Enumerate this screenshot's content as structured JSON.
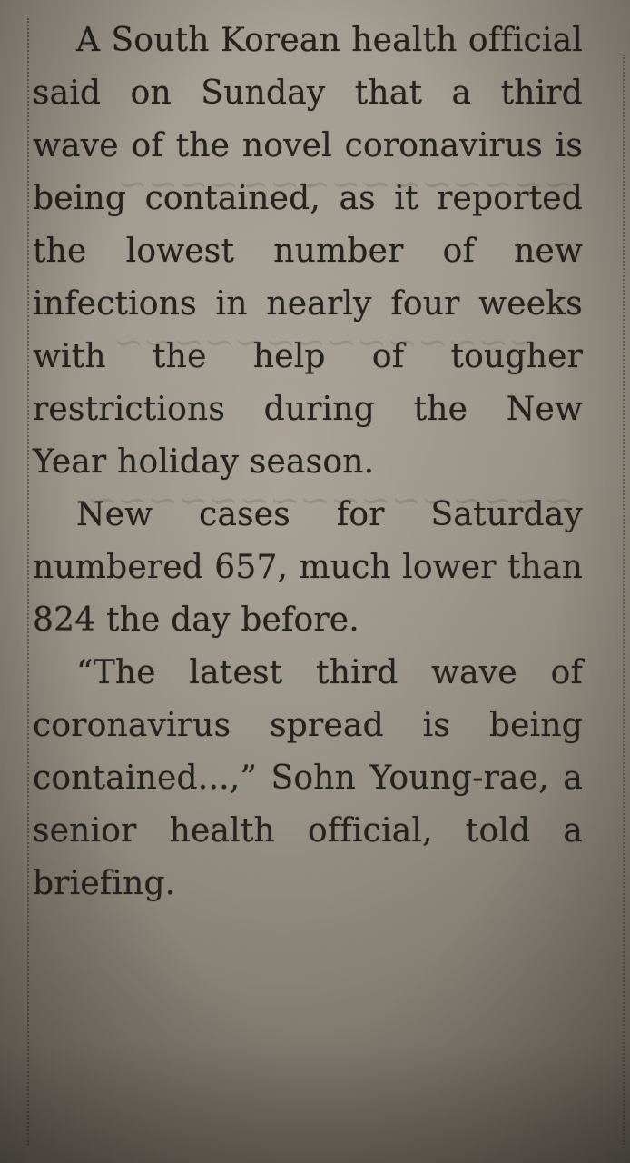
{
  "article": {
    "paragraphs": [
      "A South Korean health official said on Sunday that a third wave of the novel coronavirus is being contained, as it reported the lowest number of new infections in nearly four weeks with the help of tougher restrictions during the New Year holiday season.",
      "New cases for Saturday numbered 657, much lower than 824 the day before.",
      "“The latest third wave of coronavirus spread is being contained...,” Sohn Young-rae, a senior health official, told a briefing."
    ]
  }
}
